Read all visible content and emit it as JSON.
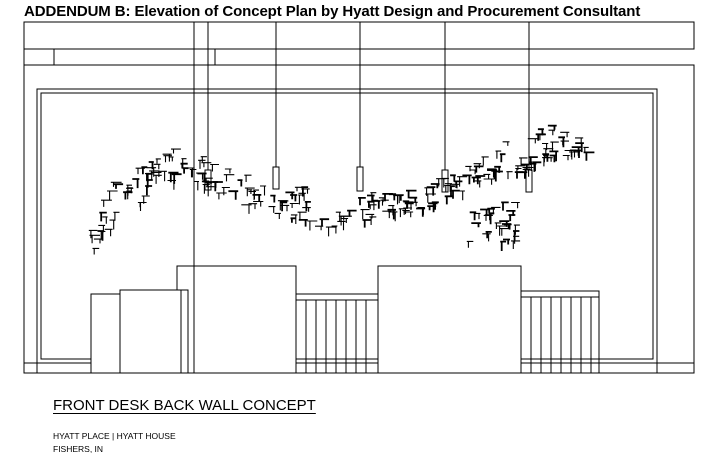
{
  "header": {
    "title": "ADDENDUM B: Elevation of Concept Plan by Hyatt Design and Procurement Consultant"
  },
  "drawing": {
    "line_color": "#000000",
    "background": "#ffffff",
    "elements": [
      "ceiling-soffit",
      "pendant-lights",
      "wall-sculpture",
      "front-desk",
      "slatted-panels"
    ]
  },
  "caption": {
    "title": "FRONT DESK BACK WALL CONCEPT",
    "project": "HYATT PLACE | HYATT HOUSE",
    "location": "FISHERS, IN"
  }
}
